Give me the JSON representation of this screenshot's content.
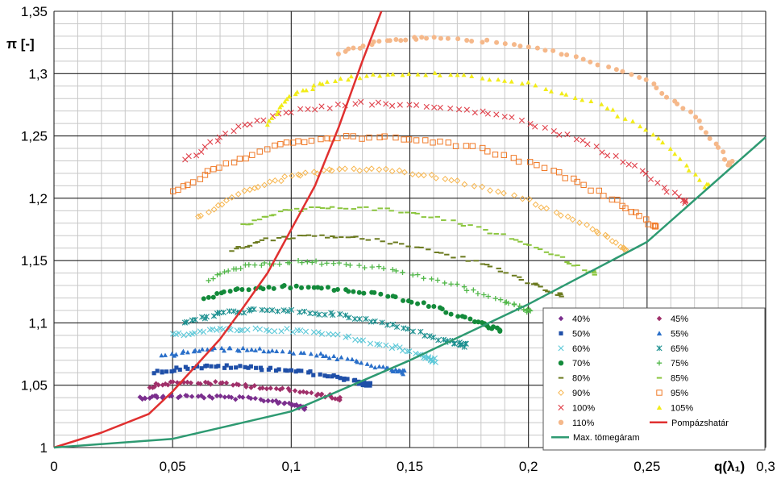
{
  "chart_data": {
    "type": "scatter",
    "title": "",
    "xlabel": "q(λ₁)",
    "ylabel": "π [-]",
    "xlim": [
      0,
      0.3
    ],
    "ylim": [
      1,
      1.35
    ],
    "grid": true,
    "legend_position": "bottom-right",
    "x_ticks": [
      "0",
      "0,05",
      "0,1",
      "0,15",
      "0,2",
      "0,25",
      "0,3"
    ],
    "y_ticks": [
      "1",
      "1,05",
      "1,1",
      "1,15",
      "1,2",
      "1,25",
      "1,3",
      "1,35"
    ],
    "series": [
      {
        "name": "40%",
        "marker": "diamond",
        "color": "#7b2f8e",
        "points": [
          [
            0.036,
            1.04
          ],
          [
            0.045,
            1.041
          ],
          [
            0.06,
            1.041
          ],
          [
            0.075,
            1.04
          ],
          [
            0.09,
            1.038
          ],
          [
            0.1,
            1.035
          ],
          [
            0.106,
            1.032
          ]
        ]
      },
      {
        "name": "45%",
        "marker": "diamond",
        "color": "#a0306a",
        "points": [
          [
            0.04,
            1.049
          ],
          [
            0.05,
            1.052
          ],
          [
            0.065,
            1.052
          ],
          [
            0.08,
            1.05
          ],
          [
            0.095,
            1.047
          ],
          [
            0.11,
            1.043
          ],
          [
            0.12,
            1.04
          ]
        ]
      },
      {
        "name": "50%",
        "marker": "square",
        "color": "#1f4fa8",
        "points": [
          [
            0.042,
            1.06
          ],
          [
            0.055,
            1.064
          ],
          [
            0.07,
            1.065
          ],
          [
            0.085,
            1.064
          ],
          [
            0.1,
            1.062
          ],
          [
            0.115,
            1.058
          ],
          [
            0.127,
            1.053
          ],
          [
            0.133,
            1.05
          ]
        ]
      },
      {
        "name": "55%",
        "marker": "triangle",
        "color": "#2a6fc9",
        "points": [
          [
            0.046,
            1.073
          ],
          [
            0.06,
            1.078
          ],
          [
            0.075,
            1.079
          ],
          [
            0.09,
            1.078
          ],
          [
            0.11,
            1.075
          ],
          [
            0.125,
            1.07
          ],
          [
            0.14,
            1.063
          ],
          [
            0.147,
            1.06
          ]
        ]
      },
      {
        "name": "60%",
        "marker": "x",
        "color": "#5bc8d8",
        "points": [
          [
            0.05,
            1.09
          ],
          [
            0.065,
            1.094
          ],
          [
            0.08,
            1.095
          ],
          [
            0.1,
            1.094
          ],
          [
            0.12,
            1.09
          ],
          [
            0.14,
            1.082
          ],
          [
            0.155,
            1.074
          ],
          [
            0.16,
            1.07
          ]
        ]
      },
      {
        "name": "65%",
        "marker": "asterisk",
        "color": "#1a8f8f",
        "points": [
          [
            0.055,
            1.1
          ],
          [
            0.07,
            1.108
          ],
          [
            0.085,
            1.11
          ],
          [
            0.105,
            1.109
          ],
          [
            0.125,
            1.105
          ],
          [
            0.145,
            1.097
          ],
          [
            0.165,
            1.086
          ],
          [
            0.173,
            1.082
          ]
        ]
      },
      {
        "name": "70%",
        "marker": "circle",
        "color": "#138a3a",
        "points": [
          [
            0.063,
            1.12
          ],
          [
            0.08,
            1.127
          ],
          [
            0.1,
            1.129
          ],
          [
            0.12,
            1.127
          ],
          [
            0.14,
            1.122
          ],
          [
            0.16,
            1.113
          ],
          [
            0.178,
            1.101
          ],
          [
            0.187,
            1.095
          ]
        ]
      },
      {
        "name": "75%",
        "marker": "plus",
        "color": "#52b84a",
        "points": [
          [
            0.065,
            1.135
          ],
          [
            0.08,
            1.146
          ],
          [
            0.1,
            1.149
          ],
          [
            0.12,
            1.148
          ],
          [
            0.145,
            1.142
          ],
          [
            0.17,
            1.13
          ],
          [
            0.19,
            1.117
          ],
          [
            0.2,
            1.11
          ]
        ]
      },
      {
        "name": "80%",
        "marker": "dash",
        "color": "#6b7a1e",
        "points": [
          [
            0.075,
            1.158
          ],
          [
            0.09,
            1.167
          ],
          [
            0.11,
            1.17
          ],
          [
            0.13,
            1.168
          ],
          [
            0.155,
            1.16
          ],
          [
            0.18,
            1.148
          ],
          [
            0.2,
            1.133
          ],
          [
            0.213,
            1.122
          ]
        ]
      },
      {
        "name": "85%",
        "marker": "dash",
        "color": "#8cc63f",
        "points": [
          [
            0.08,
            1.178
          ],
          [
            0.095,
            1.189
          ],
          [
            0.115,
            1.193
          ],
          [
            0.14,
            1.191
          ],
          [
            0.165,
            1.183
          ],
          [
            0.19,
            1.17
          ],
          [
            0.21,
            1.155
          ],
          [
            0.227,
            1.14
          ]
        ]
      },
      {
        "name": "90%",
        "marker": "diamond-open",
        "color": "#f7b64f",
        "points": [
          [
            0.06,
            1.185
          ],
          [
            0.08,
            1.205
          ],
          [
            0.1,
            1.218
          ],
          [
            0.12,
            1.223
          ],
          [
            0.145,
            1.222
          ],
          [
            0.17,
            1.214
          ],
          [
            0.2,
            1.198
          ],
          [
            0.225,
            1.178
          ],
          [
            0.24,
            1.16
          ]
        ]
      },
      {
        "name": "95%",
        "marker": "square-open",
        "color": "#f07a28",
        "points": [
          [
            0.05,
            1.205
          ],
          [
            0.07,
            1.225
          ],
          [
            0.095,
            1.243
          ],
          [
            0.12,
            1.249
          ],
          [
            0.15,
            1.248
          ],
          [
            0.18,
            1.24
          ],
          [
            0.21,
            1.222
          ],
          [
            0.235,
            1.2
          ],
          [
            0.253,
            1.178
          ]
        ]
      },
      {
        "name": "100%",
        "marker": "x",
        "color": "#e0404a",
        "points": [
          [
            0.055,
            1.23
          ],
          [
            0.075,
            1.255
          ],
          [
            0.1,
            1.27
          ],
          [
            0.13,
            1.276
          ],
          [
            0.16,
            1.274
          ],
          [
            0.19,
            1.266
          ],
          [
            0.22,
            1.248
          ],
          [
            0.245,
            1.225
          ],
          [
            0.266,
            1.197
          ]
        ]
      },
      {
        "name": "105%",
        "marker": "triangle",
        "color": "#f2ec1a",
        "points": [
          [
            0.09,
            1.26
          ],
          [
            0.1,
            1.282
          ],
          [
            0.115,
            1.294
          ],
          [
            0.14,
            1.3
          ],
          [
            0.17,
            1.299
          ],
          [
            0.2,
            1.292
          ],
          [
            0.23,
            1.276
          ],
          [
            0.255,
            1.248
          ],
          [
            0.275,
            1.21
          ]
        ]
      },
      {
        "name": "110%",
        "marker": "circle",
        "color": "#f5b88a",
        "points": [
          [
            0.12,
            1.317
          ],
          [
            0.14,
            1.327
          ],
          [
            0.16,
            1.329
          ],
          [
            0.19,
            1.325
          ],
          [
            0.22,
            1.314
          ],
          [
            0.25,
            1.294
          ],
          [
            0.27,
            1.265
          ],
          [
            0.285,
            1.228
          ]
        ]
      }
    ],
    "lines": [
      {
        "name": "Pompázshatár",
        "color": "#e03030",
        "points": [
          [
            0,
            1.0
          ],
          [
            0.02,
            1.012
          ],
          [
            0.04,
            1.027
          ],
          [
            0.05,
            1.045
          ],
          [
            0.06,
            1.066
          ],
          [
            0.07,
            1.087
          ],
          [
            0.08,
            1.113
          ],
          [
            0.09,
            1.14
          ],
          [
            0.1,
            1.175
          ],
          [
            0.11,
            1.21
          ],
          [
            0.12,
            1.257
          ],
          [
            0.13,
            1.31
          ],
          [
            0.138,
            1.35
          ]
        ]
      },
      {
        "name": "Max. tömegáram",
        "color": "#2e9a72",
        "points": [
          [
            0,
            1.0
          ],
          [
            0.05,
            1.007
          ],
          [
            0.1,
            1.029
          ],
          [
            0.15,
            1.07
          ],
          [
            0.2,
            1.115
          ],
          [
            0.25,
            1.165
          ],
          [
            0.3,
            1.249
          ]
        ]
      }
    ],
    "legend": {
      "rows": [
        [
          "40%",
          "45%"
        ],
        [
          "50%",
          "55%"
        ],
        [
          "60%",
          "65%"
        ],
        [
          "70%",
          "75%"
        ],
        [
          "80%",
          "85%"
        ],
        [
          "90%",
          "95%"
        ],
        [
          "100%",
          "105%"
        ],
        [
          "110%",
          "Pompázshatár"
        ],
        [
          "Max. tömegáram"
        ]
      ]
    }
  }
}
